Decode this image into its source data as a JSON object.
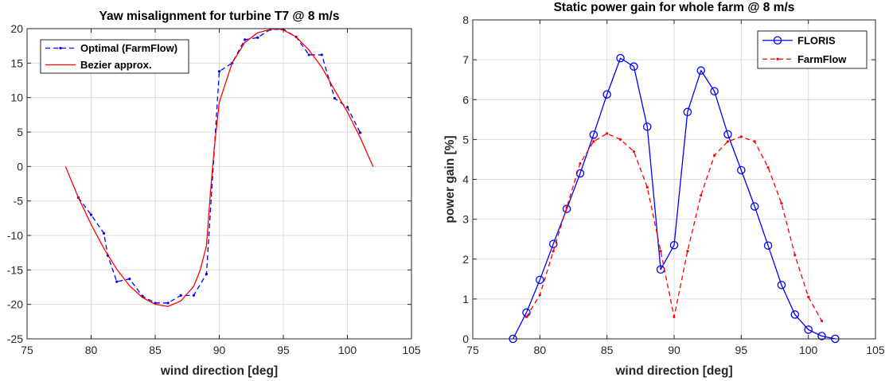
{
  "chart_data": [
    {
      "type": "line",
      "title": "Yaw misalignment for turbine T7 @ 8 m/s",
      "xlabel": "wind direction [deg]",
      "ylabel": "",
      "xlim": [
        75,
        105
      ],
      "ylim": [
        -25,
        20
      ],
      "xticks": [
        "75",
        "80",
        "85",
        "90",
        "95",
        "100",
        "105"
      ],
      "yticks": [
        "-25",
        "-20",
        "-15",
        "-10",
        "-5",
        "0",
        "5",
        "10",
        "15",
        "20"
      ],
      "grid": true,
      "legend_position": "top-left",
      "series": [
        {
          "name": "Optimal (FarmFlow)",
          "color": "#0000ff",
          "style": "dashed-dot-markers",
          "x": [
            79,
            80,
            81,
            81.3,
            82,
            83,
            84,
            85,
            86,
            87,
            88,
            89,
            90,
            91,
            92,
            93,
            94,
            95,
            96,
            97,
            98,
            99,
            100,
            101
          ],
          "y": [
            -4.5,
            -7.0,
            -9.7,
            -12.9,
            -16.7,
            -16.3,
            -18.8,
            -19.8,
            -19.8,
            -18.7,
            -18.7,
            -15.6,
            13.8,
            15.0,
            18.4,
            18.7,
            19.9,
            19.9,
            18.8,
            16.2,
            16.2,
            9.9,
            8.6,
            4.9
          ]
        },
        {
          "name": "Bezier approx.",
          "color": "#ff0000",
          "style": "solid",
          "x": [
            78,
            79,
            80,
            81,
            82,
            83,
            84,
            85,
            86,
            87,
            88,
            88.5,
            89,
            89.3,
            89.6,
            90,
            91,
            92,
            93,
            94,
            94.5,
            95,
            96,
            97,
            98,
            99,
            100,
            101,
            102
          ],
          "y": [
            0,
            -4.5,
            -8.4,
            -11.9,
            -14.9,
            -17.3,
            -19.0,
            -20.0,
            -20.3,
            -19.5,
            -17.4,
            -15.1,
            -11.5,
            -4.0,
            2.5,
            9.3,
            15.0,
            18.0,
            19.4,
            19.9,
            20.0,
            19.8,
            18.8,
            16.9,
            14.4,
            11.1,
            7.9,
            4.2,
            0
          ]
        }
      ]
    },
    {
      "type": "line",
      "title": "Static power gain for whole farm @ 8 m/s",
      "xlabel": "wind direction [deg]",
      "ylabel": "power gain [%]",
      "xlim": [
        75,
        105
      ],
      "ylim": [
        0,
        8
      ],
      "xticks": [
        "75",
        "80",
        "85",
        "90",
        "95",
        "100",
        "105"
      ],
      "yticks": [
        "0",
        "1",
        "2",
        "3",
        "4",
        "5",
        "6",
        "7",
        "8"
      ],
      "grid": true,
      "legend_position": "top-right",
      "series": [
        {
          "name": "FLORIS",
          "color": "#0000ff",
          "style": "solid-circles",
          "x": [
            78,
            79,
            80,
            81,
            82,
            83,
            84,
            85,
            86,
            87,
            88,
            89,
            90,
            91,
            92,
            93,
            94,
            95,
            96,
            97,
            98,
            99,
            100,
            101,
            102
          ],
          "y": [
            0.0,
            0.66,
            1.48,
            2.38,
            3.26,
            4.15,
            5.12,
            6.13,
            7.04,
            6.83,
            5.32,
            1.74,
            2.35,
            5.69,
            6.73,
            6.21,
            5.13,
            4.23,
            3.32,
            2.34,
            1.35,
            0.61,
            0.23,
            0.07,
            0.0
          ]
        },
        {
          "name": "FarmFlow",
          "color": "#ff0000",
          "style": "dashed-dot-markers",
          "x": [
            79,
            80,
            81,
            82,
            83,
            84,
            85,
            86,
            87,
            88,
            89,
            90,
            91,
            92,
            93,
            94,
            95,
            96,
            97,
            98,
            99,
            100,
            101
          ],
          "y": [
            0.55,
            1.1,
            2.2,
            3.3,
            4.4,
            4.95,
            5.15,
            5.0,
            4.7,
            3.8,
            2.2,
            0.55,
            2.2,
            3.6,
            4.6,
            4.95,
            5.07,
            4.95,
            4.3,
            3.4,
            2.1,
            1.05,
            0.45
          ]
        }
      ]
    }
  ]
}
